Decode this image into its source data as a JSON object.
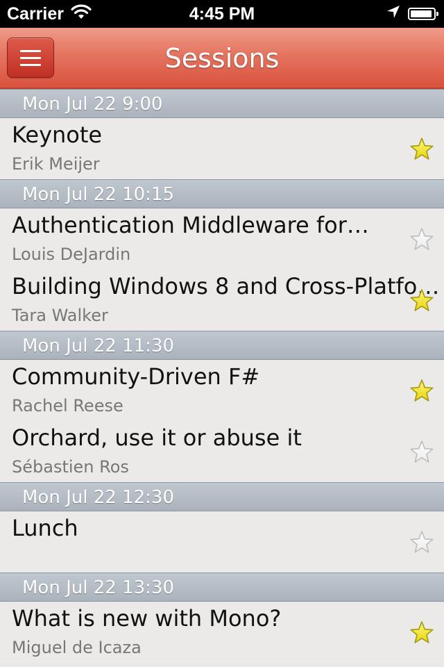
{
  "status_bar": {
    "carrier": "Carrier",
    "time": "4:45 PM",
    "icons": [
      "wifi-icon",
      "location-arrow-icon",
      "battery-icon"
    ]
  },
  "nav": {
    "title": "Sessions",
    "menu_icon": "hamburger-menu-icon"
  },
  "colors": {
    "nav_bar": "#e06a55",
    "section_header": "#b4bcc4",
    "star_favorite": "#f2e21e",
    "star_empty": "#ffffff"
  },
  "sections": [
    {
      "header": "Mon Jul 22 9:00",
      "sessions": [
        {
          "title": "Keynote",
          "speaker": "Erik Meijer",
          "favorite": true
        }
      ]
    },
    {
      "header": "Mon Jul 22 10:15",
      "sessions": [
        {
          "title": "Authentication Middleware for…",
          "speaker": "Louis DeJardin",
          "favorite": false
        },
        {
          "title": "Building Windows 8 and Cross-Platfo…",
          "speaker": "Tara Walker",
          "favorite": true
        }
      ]
    },
    {
      "header": "Mon Jul 22 11:30",
      "sessions": [
        {
          "title": "Community-Driven F#",
          "speaker": "Rachel Reese",
          "favorite": true
        },
        {
          "title": "Orchard, use it or abuse it",
          "speaker": "Sébastien Ros",
          "favorite": false
        }
      ]
    },
    {
      "header": "Mon Jul 22 12:30",
      "sessions": [
        {
          "title": "Lunch",
          "speaker": "",
          "favorite": false
        }
      ]
    },
    {
      "header": "Mon Jul 22 13:30",
      "sessions": [
        {
          "title": "What is new with Mono?",
          "speaker": "Miguel de Icaza",
          "favorite": true
        }
      ]
    }
  ]
}
